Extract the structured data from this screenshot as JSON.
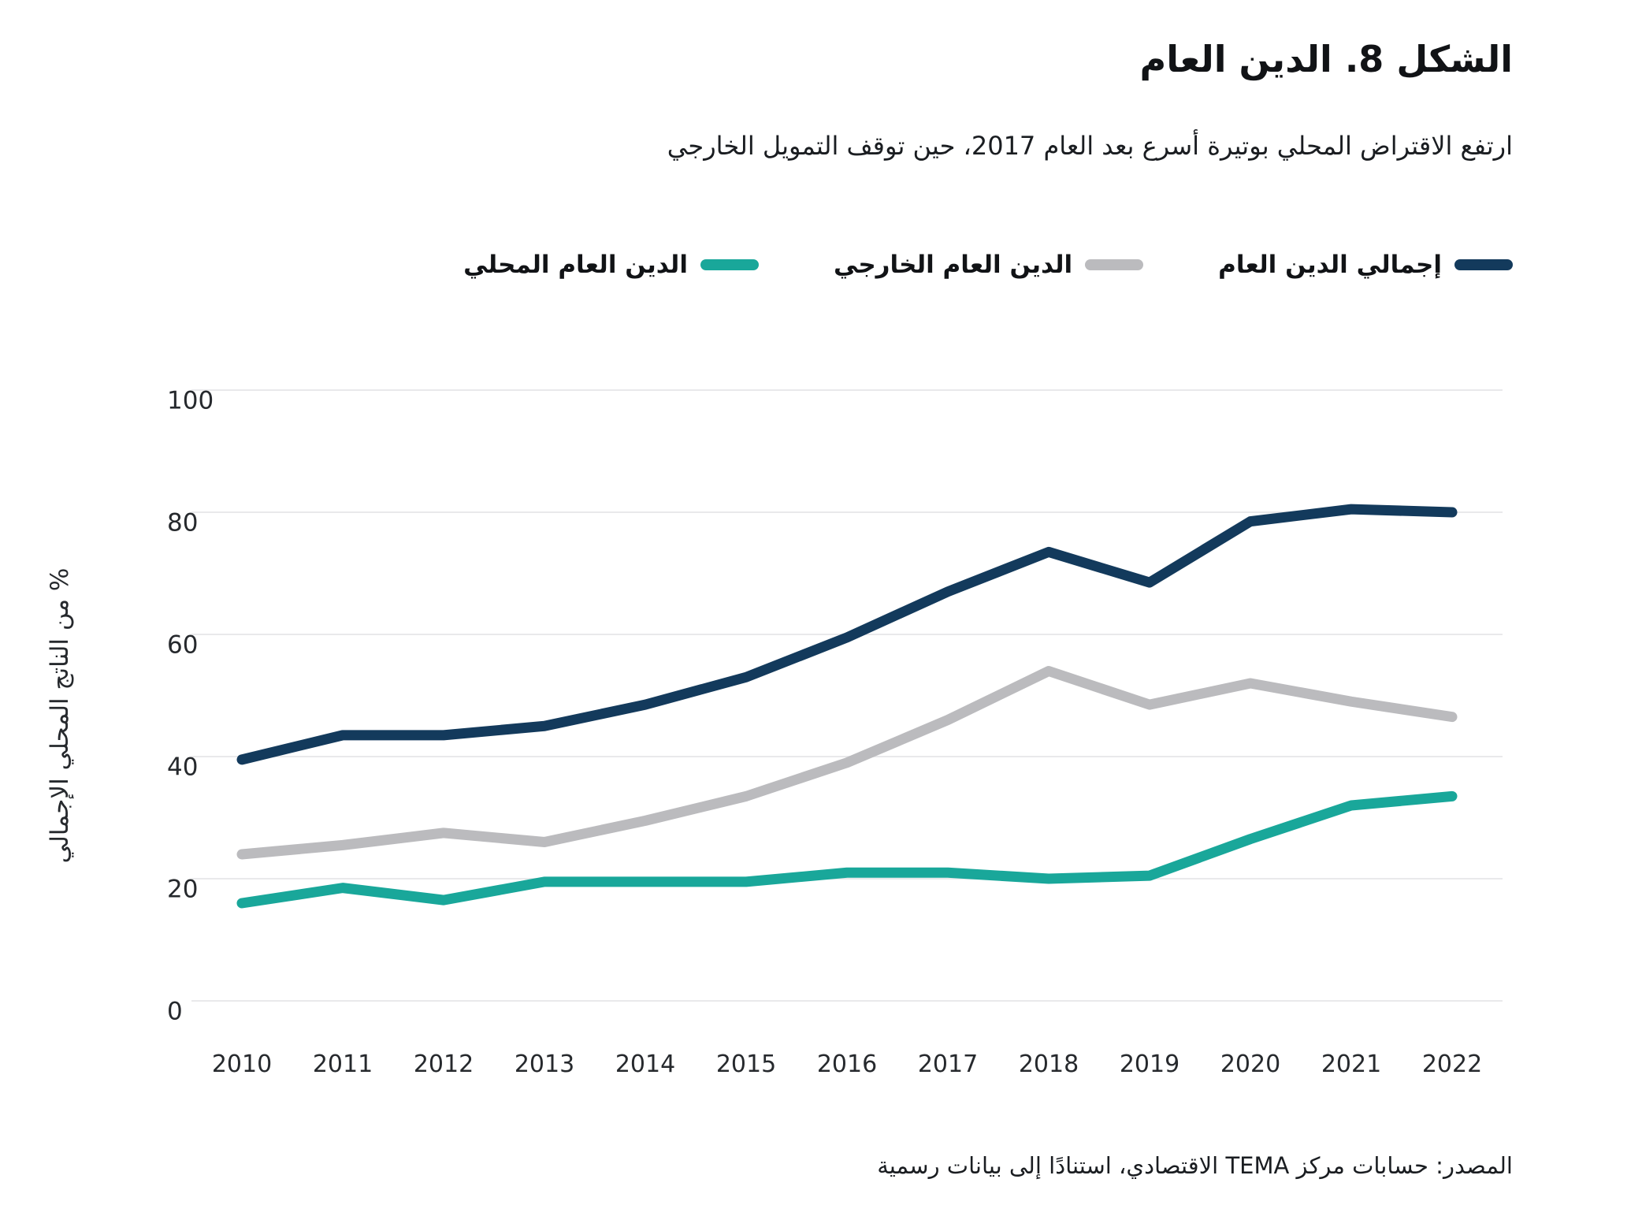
{
  "figure": {
    "title": "الشكل 8. الدين العام",
    "subtitle": "ارتفع الاقتراض المحلي بوتيرة أسرع بعد العام 2017، حين توقف التمويل الخارجي",
    "source": "المصدر: حسابات مركز TEMA الاقتصادي، استنادًا إلى بيانات رسمية"
  },
  "colors": {
    "total_debt": "#133a5c",
    "external_debt": "#bbbbbe",
    "domestic_debt": "#19a79a",
    "gridline": "#e9e9eb",
    "axis_text": "#26292d"
  },
  "chart_data": {
    "type": "line",
    "title": "الشكل 8. الدين العام",
    "xlabel": "",
    "ylabel": "% من الناتج المحلي الإجمالي",
    "x": [
      2010,
      2011,
      2012,
      2013,
      2014,
      2015,
      2016,
      2017,
      2018,
      2019,
      2020,
      2021,
      2022
    ],
    "series": [
      {
        "name": "إجمالي الدين العام",
        "color": "#133a5c",
        "values": [
          39.5,
          43.5,
          43.5,
          45,
          48.5,
          53,
          59.5,
          67,
          73.5,
          68.5,
          78.5,
          80.5,
          80
        ]
      },
      {
        "name": "الدين العام الخارجي",
        "color": "#bbbbbe",
        "values": [
          24,
          25.5,
          27.5,
          26,
          29.5,
          33.5,
          39,
          46,
          54,
          48.5,
          52,
          49,
          46.5
        ]
      },
      {
        "name": "الدين العام المحلي",
        "color": "#19a79a",
        "values": [
          16,
          18.5,
          16.5,
          19.5,
          19.5,
          19.5,
          21,
          21,
          20,
          20.5,
          26.5,
          32,
          33.5
        ]
      }
    ],
    "ylim": [
      0,
      100
    ],
    "yticks": [
      0,
      20,
      40,
      60,
      80,
      100
    ],
    "grid": true,
    "legend_position": "top"
  }
}
